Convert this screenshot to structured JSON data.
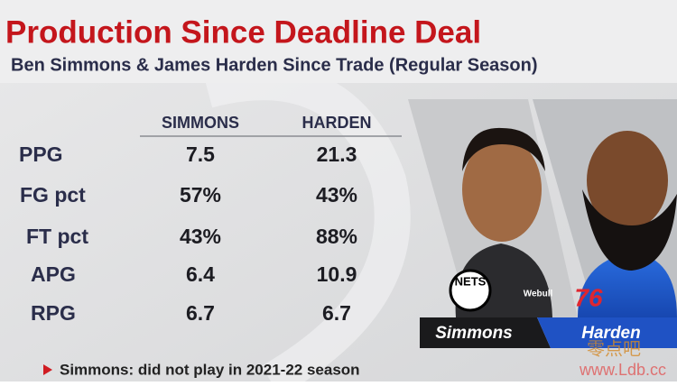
{
  "header": {
    "title": "Production Since Deadline Deal",
    "subtitle": "Ben Simmons & James Harden Since Trade (Regular Season)"
  },
  "table": {
    "columns": [
      "SIMMONS",
      "HARDEN"
    ],
    "rows": [
      [
        "PPG",
        "7.5",
        "21.3"
      ],
      [
        "FG pct",
        "57%",
        "43%"
      ],
      [
        "FT pct",
        "43%",
        "88%"
      ],
      [
        "APG",
        "6.4",
        "10.9"
      ],
      [
        "RPG",
        "6.7",
        "6.7"
      ]
    ]
  },
  "players": [
    {
      "name": "Simmons",
      "logo": "NETS",
      "sponsor": "Webull"
    },
    {
      "name": "Harden",
      "logo": "76"
    }
  ],
  "footnote": "Simmons: did not play in 2021-22 season",
  "watermark": {
    "name": "零点吧",
    "site": "www.Ldb.cc"
  }
}
